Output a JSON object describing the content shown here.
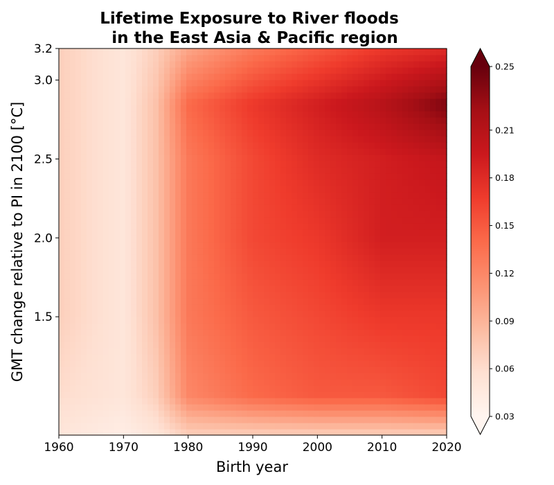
{
  "chart_data": {
    "type": "heatmap",
    "title_lines": [
      "Lifetime Exposure to River floods",
      "in the East Asia & Pacific region"
    ],
    "xlabel": "Birth year",
    "ylabel": "GMT change relative to PI in 2100 [°C]",
    "xlim": [
      1960,
      2020
    ],
    "ylim": [
      0.75,
      3.2
    ],
    "x_ticks": [
      "1960",
      "1970",
      "1980",
      "1990",
      "2000",
      "2010",
      "2020"
    ],
    "y_ticks": [
      "1.5",
      "2.0",
      "2.5",
      "3.0",
      "3.2"
    ],
    "colorbar": {
      "min": 0.03,
      "max": 0.25,
      "ticks": [
        "0.03",
        "0.06",
        "0.09",
        "0.12",
        "0.15",
        "0.18",
        "0.21",
        "0.25"
      ],
      "extend": "both",
      "colormap": "Reds"
    },
    "birth_years": [
      1960,
      1970,
      1975,
      1980,
      1990,
      2000,
      2010,
      2020
    ],
    "gmt_levels": [
      0.75,
      1.0,
      1.5,
      2.0,
      2.5,
      2.85,
      3.2
    ],
    "values": [
      [
        0.05,
        0.04,
        0.05,
        0.07,
        0.07,
        0.07,
        0.07,
        0.07
      ],
      [
        0.06,
        0.05,
        0.07,
        0.12,
        0.14,
        0.15,
        0.15,
        0.16
      ],
      [
        0.07,
        0.05,
        0.08,
        0.13,
        0.15,
        0.16,
        0.17,
        0.17
      ],
      [
        0.07,
        0.05,
        0.08,
        0.13,
        0.16,
        0.17,
        0.19,
        0.19
      ],
      [
        0.07,
        0.05,
        0.08,
        0.13,
        0.16,
        0.18,
        0.19,
        0.2
      ],
      [
        0.07,
        0.05,
        0.08,
        0.14,
        0.17,
        0.19,
        0.21,
        0.24
      ],
      [
        0.07,
        0.05,
        0.07,
        0.1,
        0.13,
        0.15,
        0.17,
        0.18
      ]
    ]
  }
}
